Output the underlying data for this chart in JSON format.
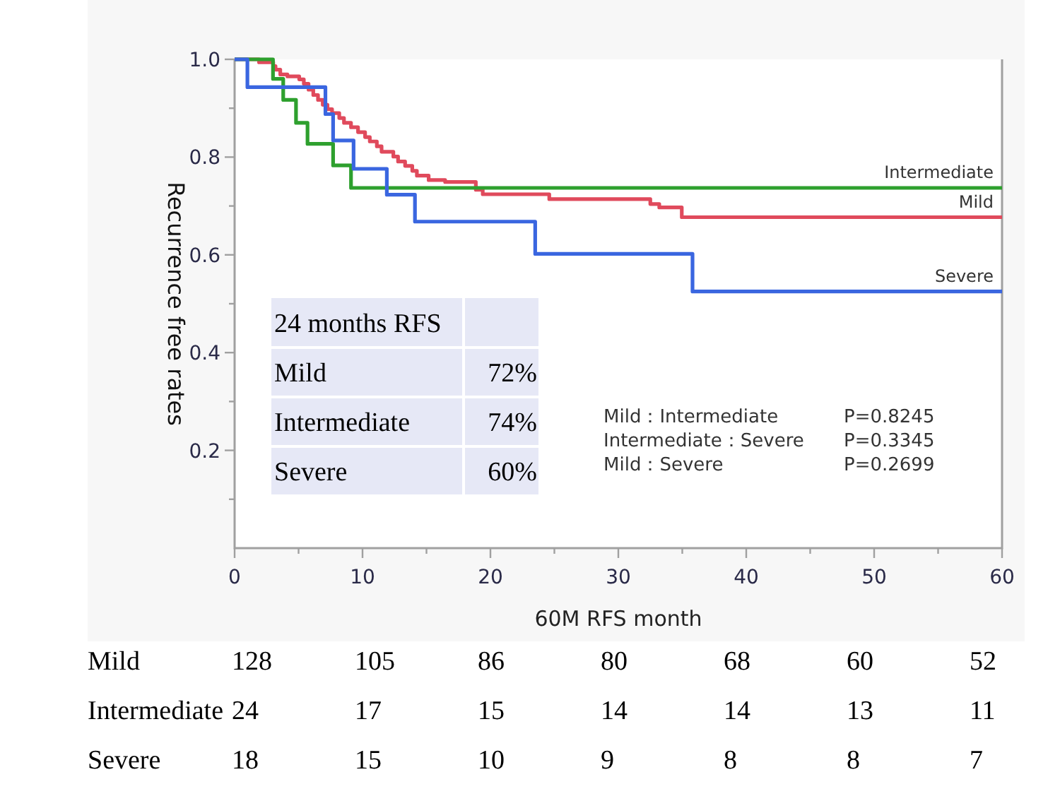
{
  "chart_data": {
    "type": "step",
    "xlabel": "60M RFS month",
    "ylabel": "Recurrence free rates",
    "xlim": [
      0,
      60
    ],
    "ylim": [
      0,
      1
    ],
    "xticks": [
      0,
      10,
      20,
      30,
      40,
      50,
      60
    ],
    "yticks": [
      0.2,
      0.4,
      0.6,
      0.8,
      {
        "value": 1,
        "label": "1.0"
      }
    ],
    "grid": false,
    "legend": false,
    "marker": "none",
    "line_style": "solid",
    "series": [
      {
        "name": "Mild",
        "color": "#e04a5c",
        "x": [
          0,
          1.91,
          3.02,
          3.2,
          3.57,
          4.13,
          5.05,
          5.41,
          5.78,
          6.15,
          6.52,
          6.89,
          7.26,
          7.62,
          8.18,
          8.55,
          9.1,
          9.65,
          10.2,
          10.57,
          11.12,
          11.49,
          12.41,
          12.78,
          13.33,
          13.89,
          14.25,
          15.17,
          16.46,
          18.86,
          19.4,
          24.6,
          32.5,
          33.2,
          34.96,
          60
        ],
        "values": [
          1,
          0.994,
          0.986,
          0.979,
          0.969,
          0.965,
          0.959,
          0.95,
          0.938,
          0.927,
          0.917,
          0.907,
          0.898,
          0.89,
          0.88,
          0.87,
          0.861,
          0.851,
          0.841,
          0.832,
          0.822,
          0.811,
          0.801,
          0.791,
          0.782,
          0.772,
          0.762,
          0.753,
          0.749,
          0.733,
          0.724,
          0.714,
          0.704,
          0.697,
          0.677,
          0.677
        ]
      },
      {
        "name": "Intermediate",
        "color": "#2ea02e",
        "x": [
          0,
          3.0,
          3.8,
          4.8,
          5.7,
          7.7,
          9.1,
          60
        ],
        "values": [
          1,
          0.96,
          0.917,
          0.87,
          0.827,
          0.783,
          0.737,
          0.737
        ]
      },
      {
        "name": "Severe",
        "color": "#3a66e0",
        "x": [
          0,
          1.0,
          7.1,
          7.7,
          9.3,
          11.9,
          14.1,
          23.5,
          35.8,
          60
        ],
        "values": [
          1,
          0.943,
          0.888,
          0.834,
          0.776,
          0.723,
          0.668,
          0.602,
          0.525,
          0.525
        ]
      }
    ],
    "annotations": [
      "24 months RFS",
      "Mild",
      "72%",
      "Intermediate",
      "74%",
      "Severe",
      "60%",
      "Mild：Intermediate",
      "P=0.8245",
      "Intermediate：Severe",
      "P=0.3345",
      "Mild：Severe",
      "P=0.2699",
      "Mild",
      "128",
      "105",
      "86",
      "80",
      "68",
      "60",
      "52",
      "Intermediate",
      "24",
      "17",
      "15",
      "14",
      "14",
      "13",
      "11",
      "Severe",
      "18",
      "15",
      "10",
      "9",
      "8",
      "8",
      "7"
    ]
  }
}
